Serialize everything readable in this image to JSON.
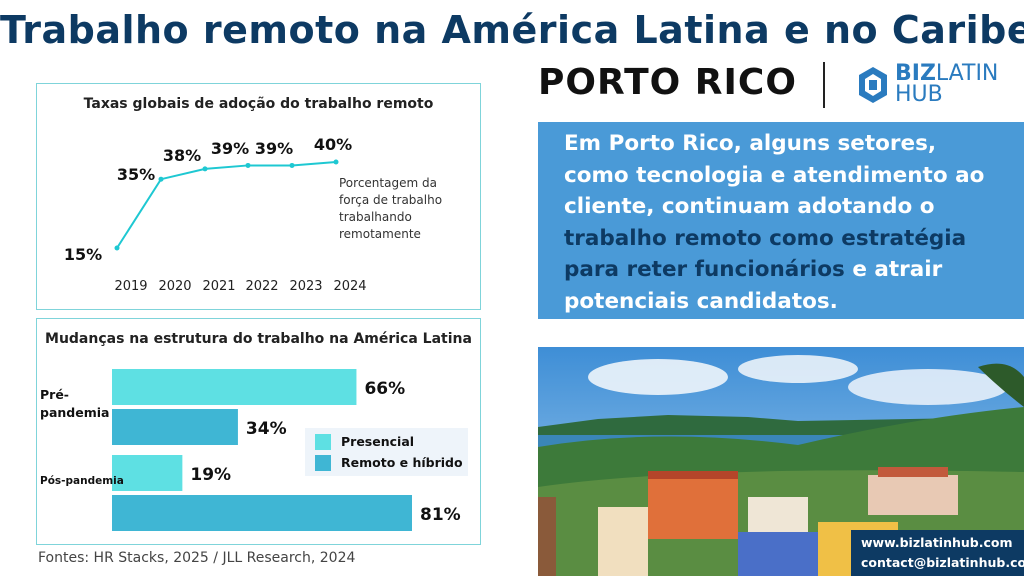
{
  "header": {
    "title": "Trabalho remoto na América Latina e no Caribe:",
    "country": "PORTO RICO"
  },
  "logo": {
    "line1_bold": "BIZ",
    "line1_rest": "LATIN",
    "line2": "HUB"
  },
  "colors": {
    "navy": "#0d3a63",
    "accent_blue": "#4a9ad7",
    "turquoise": "#1ec8d2",
    "presencial": "#5ee0e3",
    "remoto": "#3fb6d4",
    "panel_border": "#7fd4da"
  },
  "chart_data": [
    {
      "type": "line",
      "title": "Taxas globais de adoção do trabalho remoto",
      "x": [
        "2019",
        "2020",
        "2021",
        "2022",
        "2023",
        "2024"
      ],
      "series": [
        {
          "values": [
            15,
            35,
            38,
            39,
            39,
            40
          ],
          "data_labels": [
            "15%",
            "35%",
            "38%",
            "39%",
            "39%",
            "40%"
          ]
        }
      ],
      "annotation": "Porcentagem da força de trabalho trabalhando remotamente",
      "ylim": [
        0,
        100
      ],
      "grid": false
    },
    {
      "type": "bar",
      "orientation": "horizontal",
      "title": "Mudanças na estrutura do trabalho na América Latina",
      "categories": [
        "Pré-pandemia",
        "Pós-pandemia"
      ],
      "series": [
        {
          "name": "Presencial",
          "values": [
            66,
            19
          ],
          "data_labels": [
            "66%",
            "19%"
          ]
        },
        {
          "name": "Remoto e híbrido",
          "values": [
            34,
            81
          ],
          "data_labels": [
            "34%",
            "81%"
          ]
        }
      ],
      "xlim": [
        0,
        100
      ],
      "legend": "right"
    }
  ],
  "sources": "Fontes: HR Stacks, 2025 / JLL Research, 2024",
  "blue_box": {
    "part1": "Em Porto Rico, alguns setores, como tecnologia e atendimento ao cliente, continuam adotando o ",
    "highlight": "trabalho remoto como estratégia para reter funcionários",
    "part2": " e atrair potenciais candidatos."
  },
  "contact": {
    "website": "www.bizlatinhub.com",
    "email": "contact@bizlatinhub.com"
  }
}
